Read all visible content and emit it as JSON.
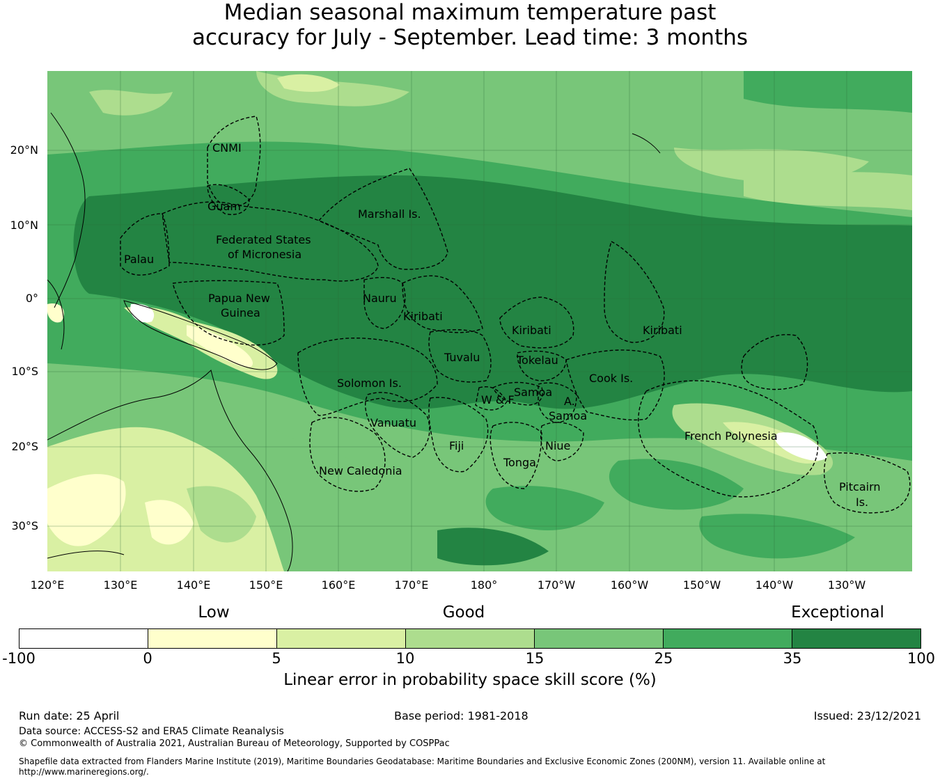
{
  "title": {
    "line1": "Median seasonal maximum temperature past",
    "line2": "accuracy for July - September. Lead time: 3 months"
  },
  "map": {
    "lat_labels": [
      "20°N",
      "10°N",
      "0°",
      "10°S",
      "20°S",
      "30°S"
    ],
    "lon_labels": [
      "120°E",
      "130°E",
      "140°E",
      "150°E",
      "160°E",
      "170°E",
      "180°",
      "170°W",
      "160°W",
      "150°W",
      "140°W",
      "130°W"
    ],
    "region_labels": {
      "cnmi": "CNMI",
      "guam": "Guam",
      "palau": "Palau",
      "fsm_1": "Federated States",
      "fsm_2": "of Micronesia",
      "marshall": "Marshall Is.",
      "png_1": "Papua New",
      "png_2": "Guinea",
      "nauru": "Nauru",
      "kiribati_west": "Kiribati",
      "kiribati_central": "Kiribati",
      "kiribati_east": "Kiribati",
      "tuvalu": "Tuvalu",
      "tokelau": "Tokelau",
      "solomon": "Solomon Is.",
      "samoa": "Samoa",
      "wf": "W & F",
      "as_1": "A.",
      "as_2": "Samoa",
      "cook": "Cook Is.",
      "vanuatu": "Vanuatu",
      "fiji": "Fiji",
      "niue": "Niue",
      "tonga": "Tonga",
      "new_caledonia": "New Caledonia",
      "french_polynesia": "French Polynesia",
      "pitcairn_1": "Pitcairn",
      "pitcairn_2": "Is."
    },
    "colors": {
      "below_0": "#ffffff",
      "c0_5": "#ffffcc",
      "c5_10": "#d9f0a3",
      "c10_15": "#addd8e",
      "c15_25": "#78c679",
      "c25_35": "#41ab5d",
      "c35_100": "#238443"
    }
  },
  "legend": {
    "category_labels": [
      "Low",
      "Good",
      "Exceptional"
    ],
    "ticks": [
      "-100",
      "0",
      "5",
      "10",
      "15",
      "25",
      "35",
      "100"
    ],
    "colors": [
      "#ffffff",
      "#ffffcc",
      "#d9f0a3",
      "#addd8e",
      "#78c679",
      "#41ab5d",
      "#238443"
    ],
    "title": "Linear error in probability space skill score (%)"
  },
  "footer": {
    "run_date": "Run date: 25 April",
    "base_period": "Base period: 1981-2018",
    "issued": "Issued: 23/12/2021",
    "data_source": "Data source: ACCESS-S2 and ERA5 Climate Reanalysis",
    "copyright": "© Commonwealth of Australia 2021, Australian Bureau of Meteorology, Supported by COSPPac",
    "shapefile_1": "Shapefile data extracted from Flanders Marine Institute (2019), Maritime Boundaries Geodatabase: Maritime Boundaries and Exclusive Economic Zones (200NM), version 11. Available online at",
    "shapefile_2": "http://www.marineregions.org/."
  }
}
